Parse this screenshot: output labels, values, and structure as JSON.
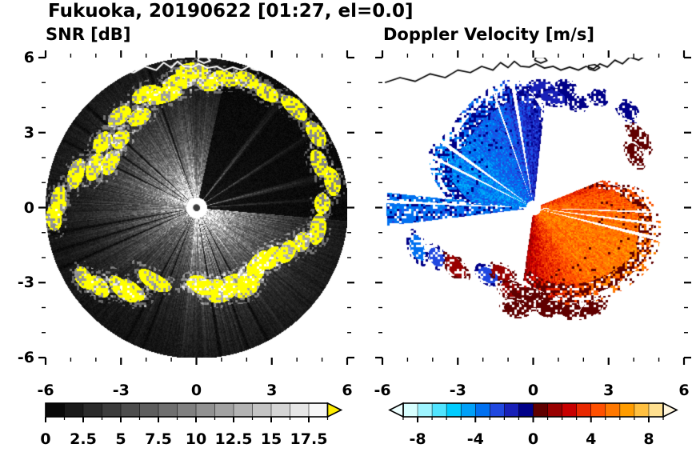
{
  "figure_title": "Fukuoka, 20190622 [01:27, el=0.0]",
  "chart_data": [
    {
      "type": "heatmap",
      "panel": "left",
      "title": "SNR [dB]",
      "xlim": [
        -6,
        6
      ],
      "ylim": [
        -6,
        6
      ],
      "xticks": [
        -6,
        -3,
        0,
        3,
        6
      ],
      "yticks": [
        -6,
        -3,
        0,
        3,
        6
      ],
      "minor_tick_step": 1,
      "ytick_labels_shown": true,
      "radar_center_km": [
        0,
        0
      ],
      "radar_max_range_km": 6,
      "background_inside_circle": "#000000",
      "clutter_color": "#ffff00",
      "coastline_color": "#ffffff",
      "falloff_km": 2.05,
      "colorbar": {
        "min": 0,
        "max": 18.75,
        "segment_step": 1.25,
        "tick_values": [
          0,
          2.5,
          5,
          7.5,
          10,
          12.5,
          15,
          17.5
        ],
        "tick_labels": [
          "0",
          "2.5",
          "5",
          "7.5",
          "10",
          "12.5",
          "15",
          "17.5"
        ],
        "colormap": "grayscale_black_to_white",
        "over_arrow_color": "#ffee00"
      },
      "bright_sectors": [
        {
          "a0": 285,
          "a1": 355,
          "g": 1.0
        },
        {
          "a0": 355,
          "a1": 372,
          "g": 0.75
        },
        {
          "a0": 95,
          "a1": 140,
          "g": 0.95
        },
        {
          "a0": 140,
          "a1": 188,
          "g": 1.0
        },
        {
          "a0": 188,
          "a1": 232,
          "g": 0.62
        },
        {
          "a0": 232,
          "a1": 285,
          "g": 0.8
        }
      ],
      "blocked_sectors": [
        {
          "a0": 12,
          "a1": 95,
          "g": 0.05
        }
      ],
      "bright_rays": [
        {
          "a": 38,
          "w": 1.6,
          "g": 0.55
        },
        {
          "a": 57,
          "w": 1.2,
          "g": 0.5
        },
        {
          "a": 76,
          "w": 1.8,
          "g": 0.55
        },
        {
          "a": 86,
          "w": 1.0,
          "g": 0.42
        }
      ],
      "black_rays": [
        152,
        160,
        171,
        201,
        208,
        246,
        253,
        260,
        297,
        305,
        313,
        341
      ],
      "clutter_blobs": [
        [
          352,
          5.1
        ],
        [
          344,
          4.7
        ],
        [
          336,
          5.0
        ],
        [
          328,
          4.3
        ],
        [
          320,
          4.8
        ],
        [
          312,
          4.1
        ],
        [
          305,
          4.6
        ],
        [
          298,
          3.9
        ],
        [
          292,
          4.4
        ],
        [
          286,
          5.0
        ],
        [
          273,
          5.5
        ],
        [
          266,
          5.7
        ],
        [
          238,
          5.3
        ],
        [
          231,
          5.0
        ],
        [
          222,
          4.4
        ],
        [
          218,
          4.2
        ],
        [
          210,
          3.4
        ],
        [
          180,
          3.0
        ],
        [
          172,
          3.2
        ],
        [
          164,
          3.6
        ],
        [
          156,
          3.3
        ],
        [
          148,
          3.8
        ],
        [
          140,
          3.5
        ],
        [
          132,
          3.3
        ],
        [
          124,
          3.6
        ],
        [
          116,
          4.0
        ],
        [
          108,
          4.4
        ],
        [
          100,
          4.9
        ],
        [
          88,
          5.0
        ],
        [
          79,
          5.5
        ],
        [
          70,
          5.2
        ],
        [
          58,
          5.6
        ],
        [
          44,
          5.6
        ],
        [
          31,
          5.4
        ],
        [
          21,
          5.5
        ],
        [
          12,
          5.3
        ],
        [
          5,
          5.0
        ],
        [
          358,
          5.5
        ]
      ]
    },
    {
      "type": "heatmap",
      "panel": "right",
      "title": "Doppler Velocity [m/s]",
      "xlim": [
        -6,
        6
      ],
      "ylim": [
        -6,
        6
      ],
      "xticks": [
        -6,
        -3,
        0,
        3,
        6
      ],
      "yticks": [
        -6,
        -3,
        0,
        3,
        6
      ],
      "minor_tick_step": 1,
      "ytick_labels_shown": false,
      "radar_center_km": [
        0,
        0
      ],
      "radar_max_range_km": 6,
      "coastline_color": "#000000",
      "wind_direction_deg": 116,
      "amp_toward": 3.9,
      "amp_away": 5.6,
      "colorbar": {
        "min": -9,
        "max": 9,
        "segment_step": 1,
        "tick_values": [
          -8,
          -4,
          0,
          4,
          8
        ],
        "tick_labels": [
          "-8",
          "-4",
          "0",
          "4",
          "8"
        ],
        "colors": [
          "#d8ffff",
          "#9ef4ff",
          "#50e4ff",
          "#00ccff",
          "#00a0f8",
          "#0070f0",
          "#2048e0",
          "#1820b8",
          "#000088",
          "#600000",
          "#980000",
          "#c80000",
          "#e82800",
          "#ff5000",
          "#ff7800",
          "#ff9c00",
          "#ffc040",
          "#ffe090"
        ],
        "under_arrow_color": "#eeffff",
        "over_arrow_color": "#fff6dd"
      },
      "fan_blue": [
        [
          275,
          3.0
        ],
        [
          288,
          3.9
        ],
        [
          300,
          4.45
        ],
        [
          312,
          4.2
        ],
        [
          324,
          4.45
        ],
        [
          336,
          4.7
        ],
        [
          348,
          4.9
        ],
        [
          358,
          4.65
        ],
        [
          366,
          3.8
        ]
      ],
      "fan_orange": [
        [
          68,
          2.6
        ],
        [
          80,
          4.0
        ],
        [
          92,
          4.7
        ],
        [
          104,
          4.85
        ],
        [
          116,
          4.9
        ],
        [
          128,
          4.6
        ],
        [
          140,
          4.3
        ],
        [
          152,
          4.0
        ],
        [
          164,
          3.7
        ],
        [
          176,
          3.3
        ],
        [
          188,
          2.9
        ]
      ],
      "streak_fan": {
        "a0": 263,
        "a1": 276,
        "maxr": 5.85
      },
      "gaps": [
        {
          "a": 297,
          "w": 0.8
        },
        {
          "a": 306,
          "w": 1.0
        },
        {
          "a": 341,
          "w": 0.5
        },
        {
          "a": 350.5,
          "w": 0.9
        },
        {
          "a": 92,
          "w": 0.5
        },
        {
          "a": 97.5,
          "w": 0.7
        },
        {
          "a": 104,
          "w": 0.9
        },
        {
          "a": 272.5,
          "w": 0.6
        }
      ],
      "blobs": [
        {
          "az": 251,
          "r": 4.9,
          "c": -3.2
        },
        {
          "az": 243,
          "r": 4.35,
          "c": -2.8
        },
        {
          "az": 233,
          "r": 3.9,
          "c": 1.6
        },
        {
          "az": 214,
          "r": 3.25,
          "c": -2.4
        },
        {
          "az": 206,
          "r": 2.9,
          "c": 1.4
        },
        {
          "az": 196,
          "r": 3.4,
          "c": 1.1
        },
        {
          "az": 190,
          "r": 4.1,
          "c": 0.9
        },
        {
          "az": 150,
          "r": 4.65,
          "c": 0.8
        },
        {
          "az": 160,
          "r": 4.35,
          "c": 0.8
        },
        {
          "az": 170,
          "r": 4.05,
          "c": 0.9
        },
        {
          "az": 178,
          "r": 3.75,
          "c": 0.8
        },
        {
          "az": 185,
          "r": 3.45,
          "c": 0.8
        },
        {
          "az": 4,
          "r": 4.8,
          "c": -2.0
        },
        {
          "az": 10,
          "r": 4.5,
          "c": -1.4
        },
        {
          "az": 15,
          "r": 4.95,
          "c": -0.8
        },
        {
          "az": 22,
          "r": 4.55,
          "c": -0.8
        },
        {
          "az": 30,
          "r": 5.15,
          "c": -0.8
        },
        {
          "az": 44,
          "r": 5.4,
          "c": -0.8
        },
        {
          "az": 56,
          "r": 5.1,
          "c": 0.8
        },
        {
          "az": 62,
          "r": 4.6,
          "c": 0.8
        }
      ]
    }
  ],
  "coastline_km": [
    [
      -5.9,
      5.0
    ],
    [
      -5.3,
      5.2
    ],
    [
      -4.7,
      5.05
    ],
    [
      -4.1,
      5.35
    ],
    [
      -3.5,
      5.2
    ],
    [
      -3.0,
      5.5
    ],
    [
      -2.5,
      5.4
    ],
    [
      -2.05,
      5.65
    ],
    [
      -1.6,
      5.5
    ],
    [
      -1.3,
      5.8
    ],
    [
      -1.0,
      5.6
    ],
    [
      -0.75,
      5.85
    ],
    [
      -0.5,
      5.65
    ],
    [
      -0.15,
      5.62
    ],
    [
      0.1,
      5.75
    ],
    [
      0.45,
      5.58
    ],
    [
      0.8,
      5.65
    ],
    [
      1.1,
      5.5
    ],
    [
      1.45,
      5.62
    ],
    [
      1.8,
      5.5
    ],
    [
      2.1,
      5.65
    ],
    [
      2.4,
      5.55
    ],
    [
      2.65,
      5.75
    ],
    [
      2.95,
      5.62
    ],
    [
      3.25,
      5.9
    ],
    [
      3.55,
      5.75
    ],
    [
      3.85,
      6.02
    ],
    [
      4.2,
      5.9
    ],
    [
      4.5,
      6.1
    ]
  ],
  "island_km": [
    [
      0.05,
      5.9
    ],
    [
      0.3,
      5.78
    ],
    [
      0.55,
      5.88
    ],
    [
      0.42,
      6.02
    ],
    [
      0.12,
      6.02
    ],
    [
      0.05,
      5.9
    ]
  ],
  "island2_km": [
    [
      2.2,
      5.55
    ],
    [
      2.45,
      5.48
    ],
    [
      2.65,
      5.6
    ],
    [
      2.45,
      5.72
    ],
    [
      2.2,
      5.68
    ],
    [
      2.2,
      5.55
    ]
  ]
}
